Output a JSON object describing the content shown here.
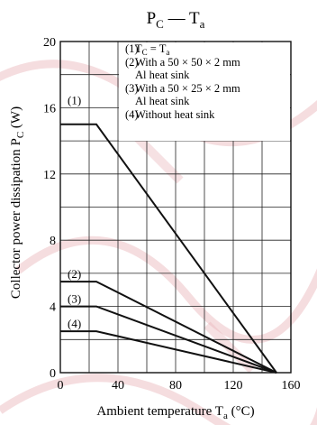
{
  "chart_data": {
    "type": "line",
    "title": {
      "main": "P",
      "sub": "C",
      "dash": " — T",
      "sub2": "a"
    },
    "xlabel": {
      "text": "Ambient temperature  T",
      "sub": "a",
      "unit": "  (°C)"
    },
    "ylabel": {
      "text": "Collector power dissipation  P",
      "sub": "C",
      "unit": "  (W)"
    },
    "xlim": [
      0,
      160
    ],
    "ylim": [
      0,
      20
    ],
    "x_ticks": [
      0,
      40,
      80,
      120,
      160
    ],
    "y_ticks": [
      0,
      4,
      8,
      12,
      16,
      20
    ],
    "x_grid": [
      0,
      20,
      40,
      60,
      80,
      100,
      120,
      140,
      160
    ],
    "y_grid": [
      0,
      2,
      4,
      6,
      8,
      10,
      12,
      14,
      16,
      18,
      20
    ],
    "grid": true,
    "series": [
      {
        "name": "(1)",
        "x": [
          0,
          25,
          150
        ],
        "y": [
          15,
          15,
          0
        ]
      },
      {
        "name": "(2)",
        "x": [
          0,
          25,
          150
        ],
        "y": [
          5.5,
          5.5,
          0
        ]
      },
      {
        "name": "(3)",
        "x": [
          0,
          25,
          150
        ],
        "y": [
          4.0,
          4.0,
          0
        ]
      },
      {
        "name": "(4)",
        "x": [
          0,
          25,
          150
        ],
        "y": [
          2.5,
          2.5,
          0
        ]
      }
    ],
    "legend": {
      "placement": "top-right",
      "entries": [
        {
          "num": "(1)",
          "lines": [
            "T_C = T_a"
          ]
        },
        {
          "num": "(2)",
          "lines": [
            "With a 50 × 50 × 2 mm",
            "Al heat sink"
          ]
        },
        {
          "num": "(3)",
          "lines": [
            "With a 50 × 25 × 2 mm",
            "Al heat sink"
          ]
        },
        {
          "num": "(4)",
          "lines": [
            "Without heat sink"
          ]
        }
      ]
    },
    "watermark_color": "#e8b4b8",
    "line_color": "#111111"
  }
}
